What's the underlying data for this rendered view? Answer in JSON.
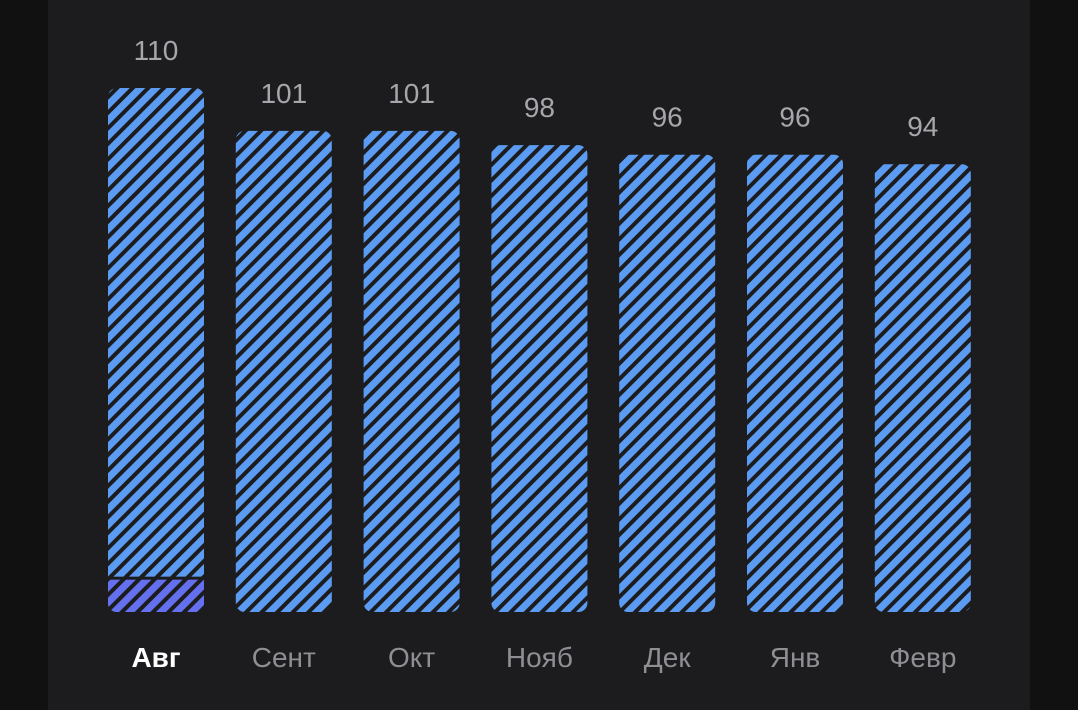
{
  "chart_data": {
    "type": "bar",
    "categories": [
      "Авг",
      "Сент",
      "Окт",
      "Нояб",
      "Дек",
      "Янв",
      "Февр"
    ],
    "values": [
      110,
      101,
      101,
      98,
      96,
      96,
      94
    ],
    "highlight_index": 0,
    "highlight_segment": {
      "index": 0,
      "value": 7
    },
    "ylim": [
      0,
      110
    ],
    "grid": false,
    "title": "",
    "xlabel": "",
    "ylabel": ""
  },
  "colors": {
    "background": "#111111",
    "panel": "#1c1c1e",
    "bar": "#5b9cf2",
    "bar_segment": "#6470ee",
    "hatch": "#1c1c1e",
    "value_label": "#a6a6ab",
    "category_label": "#8e8e93",
    "category_label_active": "#ffffff"
  }
}
